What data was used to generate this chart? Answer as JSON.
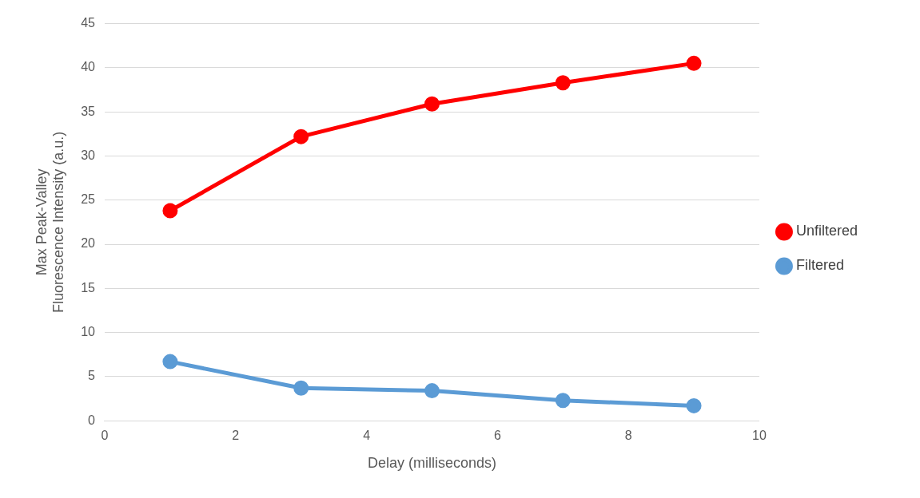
{
  "chart_data": {
    "type": "line",
    "xlabel": "Delay (milliseconds)",
    "ylabel": "Max Peak-Valley\nFluorescence Intensity (a.u.)",
    "x": [
      1,
      3,
      5,
      7,
      9
    ],
    "series": [
      {
        "name": "Unfiltered",
        "color": "#ff0000",
        "values": [
          23.8,
          32.2,
          35.9,
          38.3,
          40.5
        ]
      },
      {
        "name": "Filtered",
        "color": "#5b9bd5",
        "values": [
          6.7,
          3.7,
          3.4,
          2.3,
          1.7
        ]
      }
    ],
    "xlim": [
      0,
      10
    ],
    "xticks": [
      0,
      2,
      4,
      6,
      8,
      10
    ],
    "ylim": [
      0,
      45
    ],
    "yticks": [
      0,
      5,
      10,
      15,
      20,
      25,
      30,
      35,
      40,
      45
    ],
    "grid": "y",
    "legend": "right",
    "marker": "circle",
    "line_style": "solid"
  }
}
